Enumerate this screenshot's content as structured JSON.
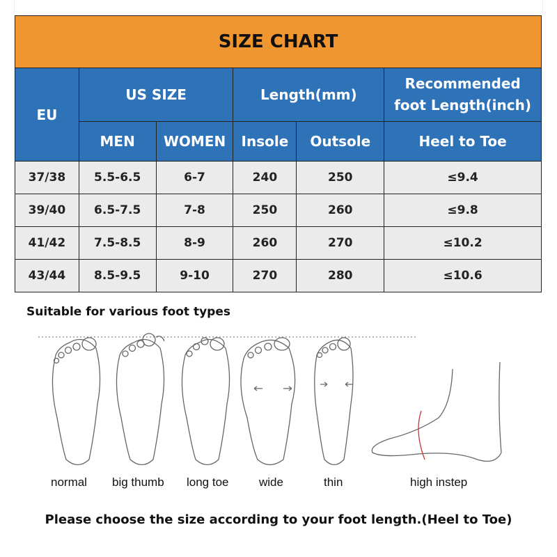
{
  "title": "SIZE CHART",
  "headers": {
    "eu": "EU",
    "us_size": "US SIZE",
    "length": "Length(mm)",
    "recommended": "Recommended foot Length(inch)",
    "men": "MEN",
    "women": "WOMEN",
    "insole": "Insole",
    "outsole": "Outsole",
    "heel_to_toe": "Heel to Toe"
  },
  "rows": [
    {
      "eu": "37/38",
      "men": "5.5-6.5",
      "women": "6-7",
      "insole": "240",
      "outsole": "250",
      "foot": "≤9.4"
    },
    {
      "eu": "39/40",
      "men": "6.5-7.5",
      "women": "7-8",
      "insole": "250",
      "outsole": "260",
      "foot": "≤9.8"
    },
    {
      "eu": "41/42",
      "men": "7.5-8.5",
      "women": "8-9",
      "insole": "260",
      "outsole": "270",
      "foot": "≤10.2"
    },
    {
      "eu": "43/44",
      "men": "8.5-9.5",
      "women": "9-10",
      "insole": "270",
      "outsole": "280",
      "foot": "≤10.6"
    }
  ],
  "foot_types": {
    "caption": "Suitable for various foot types",
    "labels": [
      "normal",
      "big thumb",
      "long toe",
      "wide",
      "thin",
      "high instep"
    ]
  },
  "note": "Please choose the size according to your foot length.(Heel to Toe)",
  "colors": {
    "title_bg": "#ef9630",
    "header_bg": "#2e72b8",
    "row_bg": "#ebebeb"
  }
}
